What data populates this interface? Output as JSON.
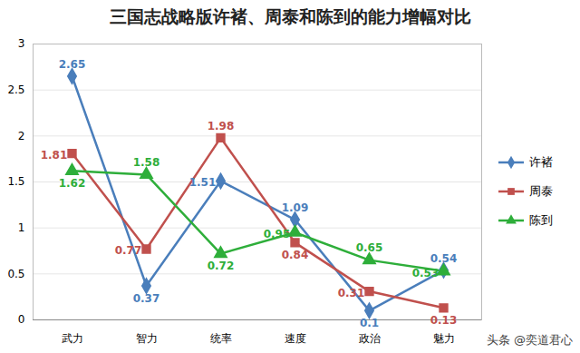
{
  "chart_data": {
    "type": "line",
    "title": "三国志战略版许褚、周泰和陈到的能力增幅对比",
    "caption": "头条 @奕道君心",
    "categories": [
      "武力",
      "智力",
      "统率",
      "速度",
      "政治",
      "魅力"
    ],
    "series": [
      {
        "name": "许褚",
        "color": "#4a7ebb",
        "marker": "diamond",
        "values": [
          2.65,
          0.37,
          1.51,
          1.09,
          0.1,
          0.54
        ]
      },
      {
        "name": "周泰",
        "color": "#c0504d",
        "marker": "square",
        "values": [
          1.81,
          0.77,
          1.98,
          0.84,
          0.31,
          0.13
        ]
      },
      {
        "name": "陈到",
        "color": "#2eae3a",
        "marker": "triangle",
        "values": [
          1.62,
          1.58,
          0.72,
          0.95,
          0.65,
          0.53
        ]
      }
    ],
    "ylim": [
      0,
      3
    ],
    "yticks": [
      0,
      0.5,
      1,
      1.5,
      2,
      2.5,
      3
    ],
    "grid": true,
    "data_labels": true,
    "legend": "right"
  }
}
